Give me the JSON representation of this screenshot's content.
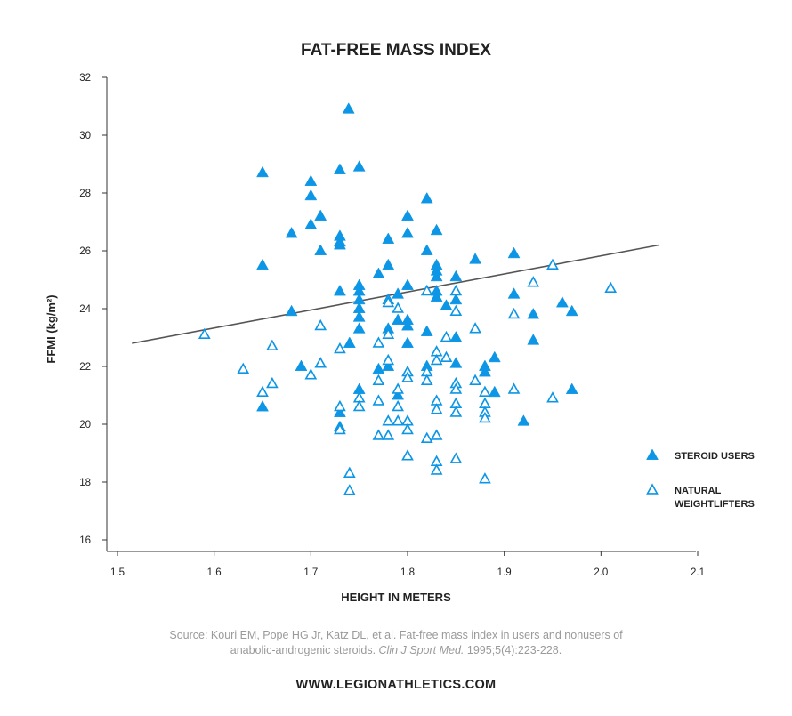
{
  "chart_data": {
    "type": "scatter",
    "title": "FAT-FREE MASS INDEX",
    "xlabel": "HEIGHT IN METERS",
    "ylabel": "FFMI (kg/m²)",
    "xlim": [
      1.5,
      2.1
    ],
    "ylim": [
      16,
      32
    ],
    "xticks": [
      "1.5",
      "1.6",
      "1.7",
      "1.8",
      "1.9",
      "2.0",
      "2.1"
    ],
    "yticks": [
      "16",
      "18",
      "20",
      "22",
      "24",
      "26",
      "28",
      "30",
      "32"
    ],
    "legend_position": "right",
    "colors": {
      "marker": "#0d96e6",
      "trendline": "#555555",
      "axis": "#333333"
    },
    "trendline": {
      "x": [
        1.515,
        2.06
      ],
      "y": [
        22.8,
        26.2
      ]
    },
    "series": [
      {
        "name": "STEROID USERS",
        "marker": "filled-triangle",
        "points": [
          [
            1.739,
            30.9
          ],
          [
            1.65,
            28.7
          ],
          [
            1.75,
            28.9
          ],
          [
            1.73,
            28.8
          ],
          [
            1.7,
            28.4
          ],
          [
            1.7,
            27.9
          ],
          [
            1.71,
            27.2
          ],
          [
            1.7,
            26.9
          ],
          [
            1.68,
            26.6
          ],
          [
            1.73,
            26.5
          ],
          [
            1.73,
            26.3
          ],
          [
            1.73,
            26.2
          ],
          [
            1.71,
            26.0
          ],
          [
            1.65,
            25.5
          ],
          [
            1.82,
            27.8
          ],
          [
            1.8,
            27.2
          ],
          [
            1.83,
            26.7
          ],
          [
            1.8,
            26.6
          ],
          [
            1.78,
            26.4
          ],
          [
            1.82,
            26.0
          ],
          [
            1.78,
            25.5
          ],
          [
            1.77,
            25.2
          ],
          [
            1.83,
            25.5
          ],
          [
            1.83,
            25.3
          ],
          [
            1.83,
            25.1
          ],
          [
            1.85,
            25.1
          ],
          [
            1.87,
            25.7
          ],
          [
            1.91,
            25.9
          ],
          [
            1.75,
            24.8
          ],
          [
            1.75,
            24.6
          ],
          [
            1.73,
            24.6
          ],
          [
            1.75,
            24.3
          ],
          [
            1.75,
            24.0
          ],
          [
            1.75,
            23.7
          ],
          [
            1.75,
            23.3
          ],
          [
            1.68,
            23.9
          ],
          [
            1.79,
            24.5
          ],
          [
            1.8,
            24.8
          ],
          [
            1.83,
            24.6
          ],
          [
            1.83,
            24.4
          ],
          [
            1.84,
            24.1
          ],
          [
            1.85,
            24.3
          ],
          [
            1.78,
            23.3
          ],
          [
            1.79,
            23.6
          ],
          [
            1.8,
            23.6
          ],
          [
            1.8,
            23.4
          ],
          [
            1.82,
            23.2
          ],
          [
            1.85,
            23.0
          ],
          [
            1.74,
            22.8
          ],
          [
            1.8,
            22.8
          ],
          [
            1.69,
            22.0
          ],
          [
            1.77,
            21.9
          ],
          [
            1.78,
            22.0
          ],
          [
            1.82,
            22.0
          ],
          [
            1.85,
            22.1
          ],
          [
            1.88,
            22.0
          ],
          [
            1.88,
            21.8
          ],
          [
            1.89,
            22.3
          ],
          [
            1.91,
            24.5
          ],
          [
            1.93,
            23.8
          ],
          [
            1.93,
            22.9
          ],
          [
            1.96,
            24.2
          ],
          [
            1.97,
            23.9
          ],
          [
            1.75,
            21.2
          ],
          [
            1.79,
            21.0
          ],
          [
            1.89,
            21.1
          ],
          [
            1.97,
            21.2
          ],
          [
            1.65,
            20.6
          ],
          [
            1.73,
            20.4
          ],
          [
            1.73,
            19.9
          ],
          [
            1.92,
            20.1
          ]
        ]
      },
      {
        "name": "NATURAL WEIGHTLIFTERS",
        "marker": "open-triangle",
        "points": [
          [
            1.59,
            23.1
          ],
          [
            1.63,
            21.9
          ],
          [
            1.65,
            21.1
          ],
          [
            1.66,
            21.4
          ],
          [
            1.66,
            22.7
          ],
          [
            1.7,
            21.7
          ],
          [
            1.71,
            22.1
          ],
          [
            1.71,
            23.4
          ],
          [
            1.73,
            22.6
          ],
          [
            1.73,
            20.6
          ],
          [
            1.73,
            19.8
          ],
          [
            1.74,
            18.3
          ],
          [
            1.74,
            17.7
          ],
          [
            1.75,
            20.9
          ],
          [
            1.75,
            20.6
          ],
          [
            1.77,
            22.8
          ],
          [
            1.77,
            21.5
          ],
          [
            1.77,
            20.8
          ],
          [
            1.77,
            19.6
          ],
          [
            1.78,
            24.3
          ],
          [
            1.78,
            24.2
          ],
          [
            1.78,
            23.1
          ],
          [
            1.78,
            22.2
          ],
          [
            1.78,
            20.1
          ],
          [
            1.78,
            19.6
          ],
          [
            1.79,
            24.0
          ],
          [
            1.79,
            21.2
          ],
          [
            1.79,
            20.6
          ],
          [
            1.79,
            20.1
          ],
          [
            1.8,
            21.8
          ],
          [
            1.8,
            21.6
          ],
          [
            1.8,
            20.1
          ],
          [
            1.8,
            19.8
          ],
          [
            1.8,
            18.9
          ],
          [
            1.82,
            24.6
          ],
          [
            1.82,
            21.8
          ],
          [
            1.82,
            21.5
          ],
          [
            1.82,
            19.5
          ],
          [
            1.83,
            22.5
          ],
          [
            1.83,
            22.2
          ],
          [
            1.83,
            20.8
          ],
          [
            1.83,
            20.5
          ],
          [
            1.83,
            19.6
          ],
          [
            1.83,
            18.7
          ],
          [
            1.83,
            18.4
          ],
          [
            1.84,
            23.0
          ],
          [
            1.84,
            22.3
          ],
          [
            1.85,
            24.6
          ],
          [
            1.85,
            23.9
          ],
          [
            1.85,
            21.4
          ],
          [
            1.85,
            21.2
          ],
          [
            1.85,
            20.7
          ],
          [
            1.85,
            20.4
          ],
          [
            1.85,
            18.8
          ],
          [
            1.87,
            23.3
          ],
          [
            1.87,
            21.5
          ],
          [
            1.88,
            21.1
          ],
          [
            1.88,
            20.7
          ],
          [
            1.88,
            20.4
          ],
          [
            1.88,
            20.2
          ],
          [
            1.88,
            18.1
          ],
          [
            1.91,
            23.8
          ],
          [
            1.91,
            21.2
          ],
          [
            1.93,
            24.9
          ],
          [
            1.95,
            25.5
          ],
          [
            1.95,
            20.9
          ],
          [
            2.01,
            24.7
          ]
        ]
      }
    ]
  },
  "source": {
    "prefix": "Source: Kouri EM, Pope HG Jr, Katz DL, et al. Fat-free mass index in users and nonusers of",
    "line2_prefix": "anabolic-androgenic steroids.",
    "journal": "Clin J Sport Med.",
    "citation": "1995;5(4):223-228."
  },
  "website": "WWW.LEGIONATHLETICS.COM"
}
